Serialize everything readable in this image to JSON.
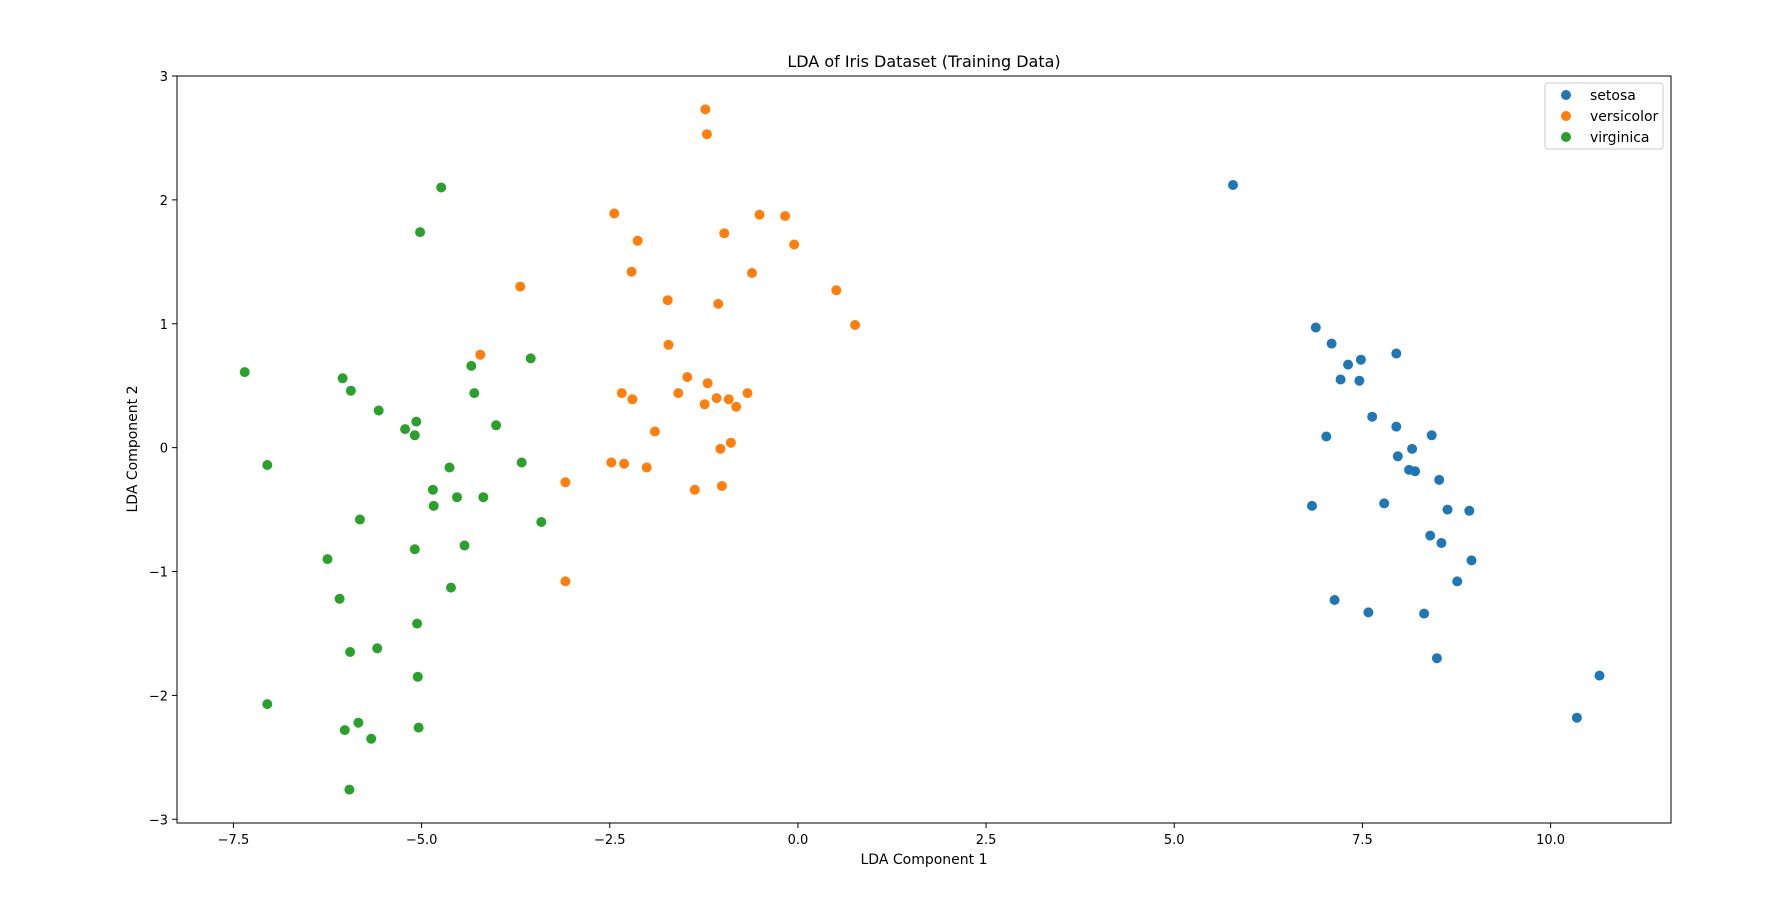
{
  "chart_data": {
    "type": "scatter",
    "title": "LDA of Iris Dataset (Training Data)",
    "xlabel": "LDA Component 1",
    "ylabel": "LDA Component 2",
    "xlim": [
      -8.25,
      11.6
    ],
    "ylim": [
      -3.03,
      3.0
    ],
    "xticks": [
      -7.5,
      -5.0,
      -2.5,
      0.0,
      2.5,
      5.0,
      7.5,
      10.0
    ],
    "xtick_labels": [
      "−7.5",
      "−5.0",
      "−2.5",
      "0.0",
      "2.5",
      "5.0",
      "7.5",
      "10.0"
    ],
    "yticks": [
      -3,
      -2,
      -1,
      0,
      1,
      2,
      3
    ],
    "ytick_labels": [
      "−3",
      "−2",
      "−1",
      "0",
      "1",
      "2",
      "3"
    ],
    "grid": false,
    "legend_position": "top-right",
    "series": [
      {
        "name": "setosa",
        "color": "#1f77b4",
        "points": [
          [
            5.78,
            2.12
          ],
          [
            6.88,
            0.97
          ],
          [
            7.09,
            0.84
          ],
          [
            7.31,
            0.67
          ],
          [
            7.48,
            0.71
          ],
          [
            7.95,
            0.76
          ],
          [
            7.21,
            0.55
          ],
          [
            7.46,
            0.54
          ],
          [
            7.63,
            0.25
          ],
          [
            7.02,
            0.09
          ],
          [
            7.95,
            0.17
          ],
          [
            8.42,
            0.1
          ],
          [
            8.16,
            -0.01
          ],
          [
            7.97,
            -0.07
          ],
          [
            8.12,
            -0.18
          ],
          [
            8.2,
            -0.19
          ],
          [
            8.52,
            -0.26
          ],
          [
            6.83,
            -0.47
          ],
          [
            7.79,
            -0.45
          ],
          [
            8.63,
            -0.5
          ],
          [
            8.92,
            -0.51
          ],
          [
            8.4,
            -0.71
          ],
          [
            8.55,
            -0.77
          ],
          [
            8.95,
            -0.91
          ],
          [
            8.76,
            -1.08
          ],
          [
            7.13,
            -1.23
          ],
          [
            7.58,
            -1.33
          ],
          [
            8.32,
            -1.34
          ],
          [
            8.49,
            -1.7
          ],
          [
            10.65,
            -1.84
          ],
          [
            10.35,
            -2.18
          ]
        ]
      },
      {
        "name": "versicolor",
        "color": "#ff7f0e",
        "points": [
          [
            -1.23,
            2.73
          ],
          [
            -1.21,
            2.53
          ],
          [
            -2.44,
            1.89
          ],
          [
            -0.51,
            1.88
          ],
          [
            -0.17,
            1.87
          ],
          [
            -2.13,
            1.67
          ],
          [
            -0.98,
            1.73
          ],
          [
            -0.05,
            1.64
          ],
          [
            -3.69,
            1.3
          ],
          [
            -2.21,
            1.42
          ],
          [
            -0.61,
            1.41
          ],
          [
            0.51,
            1.27
          ],
          [
            -1.73,
            1.19
          ],
          [
            -1.06,
            1.16
          ],
          [
            0.76,
            0.99
          ],
          [
            -1.72,
            0.83
          ],
          [
            -4.22,
            0.75
          ],
          [
            -1.47,
            0.57
          ],
          [
            -1.2,
            0.52
          ],
          [
            -2.34,
            0.44
          ],
          [
            -2.2,
            0.39
          ],
          [
            -1.59,
            0.44
          ],
          [
            -1.08,
            0.4
          ],
          [
            -0.92,
            0.39
          ],
          [
            -0.67,
            0.44
          ],
          [
            -1.24,
            0.35
          ],
          [
            -0.82,
            0.33
          ],
          [
            -1.9,
            0.13
          ],
          [
            -0.89,
            0.04
          ],
          [
            -1.03,
            -0.01
          ],
          [
            -2.48,
            -0.12
          ],
          [
            -2.31,
            -0.13
          ],
          [
            -2.01,
            -0.16
          ],
          [
            -3.09,
            -0.28
          ],
          [
            -1.37,
            -0.34
          ],
          [
            -1.01,
            -0.31
          ],
          [
            -3.09,
            -1.08
          ]
        ]
      },
      {
        "name": "virginica",
        "color": "#2ca02c",
        "points": [
          [
            -4.74,
            2.1
          ],
          [
            -5.02,
            1.74
          ],
          [
            -7.35,
            0.61
          ],
          [
            -6.05,
            0.56
          ],
          [
            -5.94,
            0.46
          ],
          [
            -4.34,
            0.66
          ],
          [
            -3.55,
            0.72
          ],
          [
            -4.3,
            0.44
          ],
          [
            -5.57,
            0.3
          ],
          [
            -5.07,
            0.21
          ],
          [
            -5.22,
            0.15
          ],
          [
            -5.09,
            0.1
          ],
          [
            -4.01,
            0.18
          ],
          [
            -7.05,
            -0.14
          ],
          [
            -3.67,
            -0.12
          ],
          [
            -4.63,
            -0.16
          ],
          [
            -4.85,
            -0.34
          ],
          [
            -4.53,
            -0.4
          ],
          [
            -4.18,
            -0.4
          ],
          [
            -4.84,
            -0.47
          ],
          [
            -5.82,
            -0.58
          ],
          [
            -3.41,
            -0.6
          ],
          [
            -4.43,
            -0.79
          ],
          [
            -5.09,
            -0.82
          ],
          [
            -6.25,
            -0.9
          ],
          [
            -4.61,
            -1.13
          ],
          [
            -6.09,
            -1.22
          ],
          [
            -5.06,
            -1.42
          ],
          [
            -5.95,
            -1.65
          ],
          [
            -5.59,
            -1.62
          ],
          [
            -5.05,
            -1.85
          ],
          [
            -7.05,
            -2.07
          ],
          [
            -5.84,
            -2.22
          ],
          [
            -6.02,
            -2.28
          ],
          [
            -5.04,
            -2.26
          ],
          [
            -5.67,
            -2.35
          ],
          [
            -5.96,
            -2.76
          ]
        ]
      }
    ]
  }
}
